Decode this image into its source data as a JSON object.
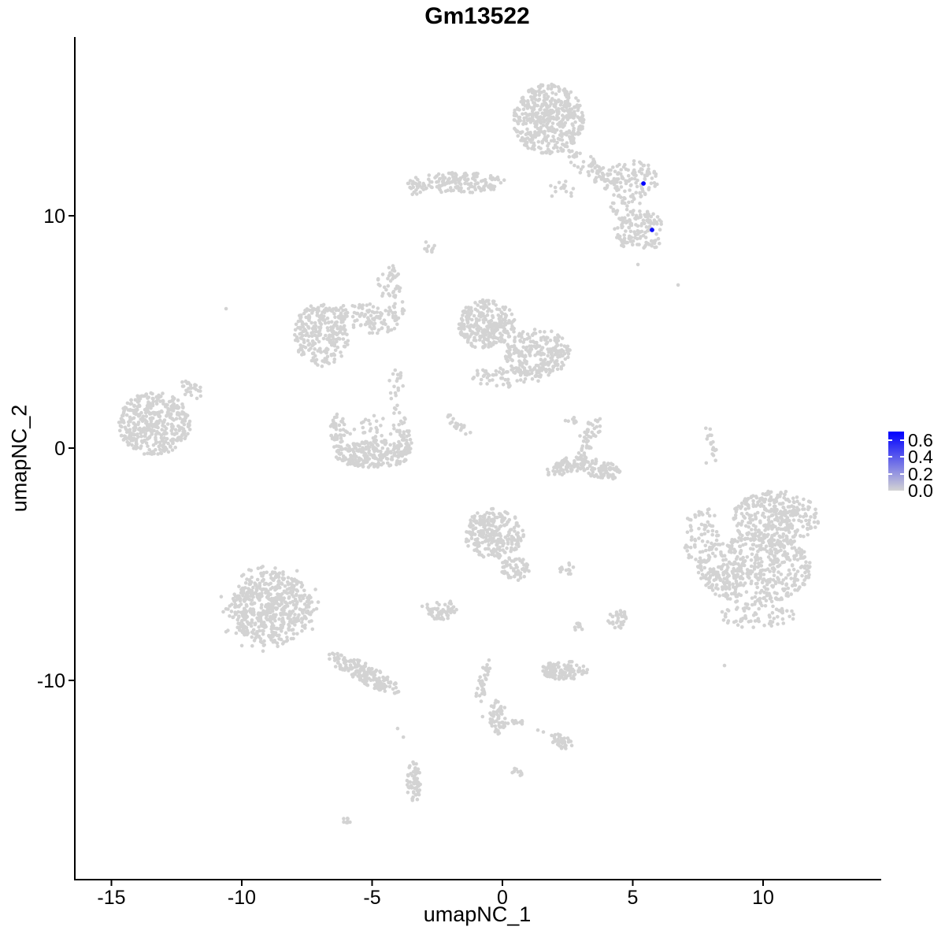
{
  "title": "Gm13522",
  "chart_data": {
    "type": "scatter",
    "subtype": "umap-feature-plot",
    "title": "Gm13522",
    "xlabel": "umapNC_1",
    "ylabel": "umapNC_2",
    "x_ticks": [
      -15,
      -10,
      -5,
      0,
      5,
      10
    ],
    "y_ticks": [
      10,
      0,
      -10
    ],
    "xlim": [
      -16.4,
      14.5
    ],
    "ylim": [
      -18.6,
      17.7
    ],
    "grid": false,
    "point_color_low": "#d3d3d3",
    "point_color_high": "#0000ff",
    "legend": {
      "position": "right",
      "tick_labels": [
        "0.6",
        "0.4",
        "0.2",
        "0.0"
      ],
      "tick_values": [
        0.6,
        0.4,
        0.2,
        0.0
      ],
      "vmax": 0.7
    },
    "cluster_format": [
      "center_x",
      "center_y",
      "radius_x",
      "radius_y",
      "rotation_deg",
      "n_points"
    ],
    "clusters": [
      [
        1.78,
        14.14,
        1.36,
        1.53,
        0,
        450
      ],
      [
        3.47,
        11.97,
        1.3,
        0.45,
        -40,
        70
      ],
      [
        2.17,
        11.15,
        0.6,
        0.5,
        0,
        15
      ],
      [
        -1.75,
        11.42,
        1.9,
        0.44,
        0,
        170
      ],
      [
        -3.35,
        11.15,
        0.3,
        0.25,
        0,
        8
      ],
      [
        4.89,
        11.56,
        1.09,
        0.81,
        0,
        110
      ],
      [
        5.26,
        9.36,
        1.0,
        0.95,
        0,
        140
      ],
      [
        4.74,
        10.4,
        0.8,
        0.5,
        0,
        25
      ],
      [
        -6.95,
        4.88,
        1.06,
        1.36,
        0,
        260
      ],
      [
        -5.14,
        5.59,
        1.15,
        0.61,
        -20,
        90
      ],
      [
        -4.26,
        6.54,
        0.45,
        1.19,
        15,
        50
      ],
      [
        -4.17,
        7.59,
        0.25,
        0.35,
        30,
        10
      ],
      [
        -2.78,
        8.64,
        0.33,
        0.2,
        -30,
        10
      ],
      [
        -0.6,
        5.32,
        1.09,
        1.08,
        0,
        280
      ],
      [
        1.36,
        4.1,
        1.27,
        1.02,
        0,
        240
      ],
      [
        0.21,
        3.08,
        1.45,
        0.47,
        0,
        70
      ],
      [
        -4.08,
        2.34,
        0.3,
        1.19,
        0,
        22
      ],
      [
        -4.98,
        -0.27,
        1.45,
        0.58,
        0,
        230
      ],
      [
        -6.28,
        0.68,
        0.36,
        0.81,
        0,
        45
      ],
      [
        -3.78,
        0.44,
        0.3,
        0.88,
        0,
        45
      ],
      [
        -5.02,
        0.81,
        0.91,
        0.61,
        0,
        30
      ],
      [
        -1.69,
        0.98,
        0.66,
        0.2,
        -42,
        20
      ],
      [
        -13.35,
        1.05,
        1.39,
        1.36,
        0,
        420
      ],
      [
        -11.93,
        2.51,
        0.6,
        0.31,
        -35,
        25
      ],
      [
        2.48,
        -0.78,
        0.85,
        0.35,
        20,
        80
      ],
      [
        3.75,
        -0.92,
        0.8,
        0.4,
        -15,
        90
      ],
      [
        3.29,
        0.44,
        0.35,
        0.95,
        -25,
        45
      ],
      [
        2.6,
        1.19,
        0.3,
        0.2,
        0,
        8
      ],
      [
        8.01,
        0.24,
        0.15,
        0.85,
        10,
        16
      ],
      [
        10.48,
        -3.02,
        1.66,
        1.19,
        0,
        330
      ],
      [
        9.67,
        -5.19,
        2.18,
        1.53,
        0,
        520
      ],
      [
        7.7,
        -3.83,
        0.76,
        1.29,
        0,
        70
      ],
      [
        9.79,
        -7.22,
        1.45,
        0.54,
        0,
        70
      ],
      [
        -8.85,
        -6.88,
        1.57,
        1.56,
        0,
        520
      ],
      [
        -5.32,
        -9.69,
        1.57,
        0.41,
        -30,
        170
      ],
      [
        -8.85,
        -6.88,
        2.11,
        2.03,
        0,
        60
      ],
      [
        -0.33,
        -3.69,
        1.15,
        1.08,
        0,
        260
      ],
      [
        0.51,
        -5.19,
        0.6,
        0.54,
        0,
        60
      ],
      [
        2.48,
        -5.19,
        0.3,
        0.27,
        0,
        12
      ],
      [
        4.44,
        -7.39,
        0.42,
        0.44,
        0,
        32
      ],
      [
        2.93,
        -7.69,
        0.21,
        0.24,
        0,
        9
      ],
      [
        2.42,
        -9.59,
        0.88,
        0.41,
        0,
        95
      ],
      [
        1.78,
        -9.53,
        0.24,
        0.3,
        0,
        25
      ],
      [
        -0.73,
        -10.07,
        0.21,
        1.02,
        -12,
        35
      ],
      [
        -0.18,
        -11.56,
        0.33,
        0.75,
        0,
        55
      ],
      [
        0.51,
        -11.8,
        0.35,
        0.12,
        0,
        10
      ],
      [
        2.27,
        -12.64,
        0.51,
        0.27,
        -35,
        40
      ],
      [
        0.57,
        -13.97,
        0.21,
        0.2,
        -30,
        10
      ],
      [
        -3.41,
        -14.37,
        0.27,
        0.95,
        0,
        60
      ],
      [
        -5.95,
        -16.03,
        0.24,
        0.14,
        -30,
        9
      ],
      [
        -2.36,
        -6.95,
        0.6,
        0.44,
        0,
        55
      ]
    ],
    "singles": [
      [
        5.2,
        7.9
      ],
      [
        6.74,
        7.02
      ],
      [
        -10.6,
        6.0
      ],
      [
        7.82,
        -0.64
      ],
      [
        8.28,
        -3.76
      ],
      [
        8.52,
        -9.36
      ],
      [
        -3.08,
        -6.81
      ],
      [
        -4.02,
        -12.07
      ],
      [
        -3.8,
        -12.44
      ],
      [
        1.36,
        -12.14
      ],
      [
        1.57,
        -12.22
      ],
      [
        -0.76,
        -11.56
      ]
    ],
    "highlighted_points": [
      {
        "x": 5.41,
        "y": 11.39,
        "value": 0.7
      },
      {
        "x": 5.74,
        "y": 9.39,
        "value": 0.65
      }
    ]
  }
}
